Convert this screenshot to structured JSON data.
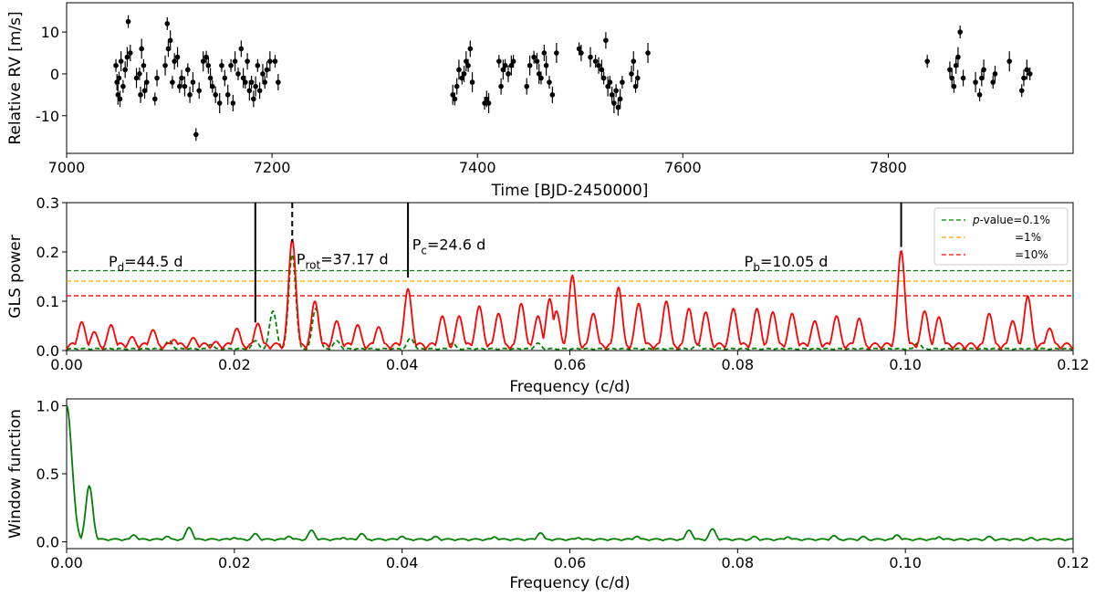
{
  "chart_data": [
    {
      "type": "scatter",
      "xlabel": "Time [BJD-2450000]",
      "ylabel": "Relative RV [m/s]",
      "xlim": [
        7000,
        7980
      ],
      "ylim": [
        -19,
        17
      ],
      "xticks": [
        7000,
        7200,
        7400,
        7600,
        7800
      ],
      "yticks": [
        -10,
        0,
        10
      ],
      "error_bars": true,
      "color": "#000000",
      "points": [
        [
          7048,
          2
        ],
        [
          7049,
          -2
        ],
        [
          7050,
          -5
        ],
        [
          7051,
          -1
        ],
        [
          7052,
          -6
        ],
        [
          7053,
          3
        ],
        [
          7055,
          -3
        ],
        [
          7057,
          1
        ],
        [
          7059,
          4
        ],
        [
          7060,
          12.5
        ],
        [
          7062,
          5
        ],
        [
          7068,
          -1
        ],
        [
          7071,
          0
        ],
        [
          7072,
          -5
        ],
        [
          7073,
          6
        ],
        [
          7075,
          2
        ],
        [
          7076,
          -4
        ],
        [
          7078,
          -2
        ],
        [
          7086,
          -6
        ],
        [
          7088,
          -1
        ],
        [
          7096,
          2
        ],
        [
          7098,
          12
        ],
        [
          7099,
          6
        ],
        [
          7101,
          8
        ],
        [
          7103,
          -2
        ],
        [
          7105,
          3
        ],
        [
          7108,
          4
        ],
        [
          7110,
          -3
        ],
        [
          7112,
          -1
        ],
        [
          7115,
          -3
        ],
        [
          7118,
          1
        ],
        [
          7120,
          -5
        ],
        [
          7123,
          -2
        ],
        [
          7126,
          -14.5
        ],
        [
          7129,
          -4
        ],
        [
          7133,
          3
        ],
        [
          7136,
          4
        ],
        [
          7138,
          2
        ],
        [
          7140,
          -1
        ],
        [
          7142,
          -3
        ],
        [
          7145,
          -5
        ],
        [
          7149,
          -7
        ],
        [
          7151,
          2
        ],
        [
          7154,
          -1
        ],
        [
          7157,
          -5
        ],
        [
          7160,
          2
        ],
        [
          7162,
          -7
        ],
        [
          7164,
          3
        ],
        [
          7167,
          0
        ],
        [
          7170,
          6
        ],
        [
          7172,
          -1
        ],
        [
          7174,
          -2
        ],
        [
          7176,
          3
        ],
        [
          7178,
          -4
        ],
        [
          7180,
          -2
        ],
        [
          7182,
          -6
        ],
        [
          7184,
          -3
        ],
        [
          7186,
          2
        ],
        [
          7188,
          -4
        ],
        [
          7191,
          0
        ],
        [
          7193,
          -2
        ],
        [
          7195,
          1
        ],
        [
          7198,
          3
        ],
        [
          7203,
          3
        ],
        [
          7206,
          -2
        ],
        [
          7376,
          -5
        ],
        [
          7378,
          -6
        ],
        [
          7380,
          -3
        ],
        [
          7382,
          1
        ],
        [
          7385,
          -1
        ],
        [
          7387,
          0
        ],
        [
          7389,
          3
        ],
        [
          7391,
          2
        ],
        [
          7393,
          6
        ],
        [
          7395,
          -2
        ],
        [
          7407,
          -7
        ],
        [
          7409,
          -6
        ],
        [
          7411,
          -7
        ],
        [
          7421,
          3
        ],
        [
          7423,
          -3
        ],
        [
          7425,
          1
        ],
        [
          7427,
          2
        ],
        [
          7430,
          0
        ],
        [
          7433,
          2
        ],
        [
          7435,
          3
        ],
        [
          7448,
          -3
        ],
        [
          7451,
          2
        ],
        [
          7455,
          4
        ],
        [
          7458,
          3
        ],
        [
          7460,
          0
        ],
        [
          7462,
          -1
        ],
        [
          7465,
          5
        ],
        [
          7467,
          2
        ],
        [
          7470,
          -2
        ],
        [
          7473,
          -5
        ],
        [
          7477,
          5
        ],
        [
          7499,
          6
        ],
        [
          7501,
          5
        ],
        [
          7510,
          4
        ],
        [
          7515,
          3
        ],
        [
          7518,
          2
        ],
        [
          7521,
          1
        ],
        [
          7523,
          -1
        ],
        [
          7525,
          8
        ],
        [
          7527,
          -3
        ],
        [
          7529,
          -2
        ],
        [
          7531,
          -5
        ],
        [
          7533,
          -7
        ],
        [
          7535,
          -4
        ],
        [
          7537,
          -8
        ],
        [
          7539,
          -6
        ],
        [
          7541,
          -2
        ],
        [
          7550,
          0
        ],
        [
          7552,
          3
        ],
        [
          7554,
          -3
        ],
        [
          7556,
          -1
        ],
        [
          7566,
          5
        ],
        [
          7838,
          3
        ],
        [
          7860,
          1
        ],
        [
          7862,
          -1
        ],
        [
          7864,
          -3
        ],
        [
          7866,
          2
        ],
        [
          7868,
          4
        ],
        [
          7870,
          10
        ],
        [
          7873,
          -1
        ],
        [
          7885,
          -2
        ],
        [
          7889,
          -5
        ],
        [
          7891,
          -1
        ],
        [
          7893,
          1
        ],
        [
          7902,
          -2
        ],
        [
          7904,
          0
        ],
        [
          7918,
          3
        ],
        [
          7930,
          -4
        ],
        [
          7932,
          -1
        ],
        [
          7935,
          1
        ],
        [
          7938,
          0
        ]
      ]
    },
    {
      "type": "line",
      "xlabel": "Frequency (c/d)",
      "ylabel": "GLS power",
      "xlim": [
        0,
        0.12
      ],
      "ylim": [
        0,
        0.3
      ],
      "xticks": [
        "0.00",
        "0.02",
        "0.04",
        "0.06",
        "0.08",
        "0.10",
        "0.12"
      ],
      "yticks": [
        "0.0",
        "0.1",
        "0.2",
        "0.3"
      ],
      "thresholds": [
        {
          "label_prefix": "p",
          "label": "-value=0.1%",
          "value": 0.162,
          "color": "#008000"
        },
        {
          "label_prefix": "",
          "label": "=1%",
          "value": 0.141,
          "color": "#FFA500"
        },
        {
          "label_prefix": "",
          "label": "=10%",
          "value": 0.111,
          "color": "#FF0000"
        }
      ],
      "annotations": [
        {
          "main": "P",
          "sub": "d",
          "rest": "=44.5 d",
          "freq": 0.0225,
          "line_top": 0.3,
          "line_bottom": 0.057,
          "style": "solid",
          "text_x": 0.005,
          "text_y": 0.17
        },
        {
          "main": "P",
          "sub": "rot",
          "rest": "=37.17 d",
          "freq": 0.0269,
          "line_top": 0.3,
          "line_bottom": 0.22,
          "style": "dashed",
          "text_x": 0.0274,
          "text_y": 0.175
        },
        {
          "main": "P",
          "sub": "c",
          "rest": "=24.6 d",
          "freq": 0.0407,
          "line_top": 0.3,
          "line_bottom": 0.148,
          "style": "solid",
          "text_x": 0.0412,
          "text_y": 0.205
        },
        {
          "main": "P",
          "sub": "b",
          "rest": "=10.05 d",
          "freq": 0.0995,
          "line_top": 0.3,
          "line_bottom": 0.21,
          "style": "solid",
          "text_x": 0.0808,
          "text_y": 0.17
        }
      ],
      "red_peaks": [
        [
          0.0018,
          0.058
        ],
        [
          0.0033,
          0.038
        ],
        [
          0.0053,
          0.052
        ],
        [
          0.0078,
          0.028
        ],
        [
          0.0103,
          0.042
        ],
        [
          0.0128,
          0.022
        ],
        [
          0.0151,
          0.026
        ],
        [
          0.0178,
          0.018
        ],
        [
          0.0203,
          0.045
        ],
        [
          0.0228,
          0.055
        ],
        [
          0.0269,
          0.225
        ],
        [
          0.0296,
          0.1
        ],
        [
          0.0322,
          0.06
        ],
        [
          0.0347,
          0.052
        ],
        [
          0.0372,
          0.048
        ],
        [
          0.0407,
          0.125
        ],
        [
          0.0448,
          0.07
        ],
        [
          0.0468,
          0.07
        ],
        [
          0.0492,
          0.09
        ],
        [
          0.0515,
          0.075
        ],
        [
          0.0542,
          0.095
        ],
        [
          0.0562,
          0.07
        ],
        [
          0.0576,
          0.105
        ],
        [
          0.0584,
          0.08
        ],
        [
          0.0603,
          0.152
        ],
        [
          0.0628,
          0.075
        ],
        [
          0.0658,
          0.128
        ],
        [
          0.0682,
          0.095
        ],
        [
          0.0715,
          0.1
        ],
        [
          0.0742,
          0.085
        ],
        [
          0.0762,
          0.078
        ],
        [
          0.0795,
          0.085
        ],
        [
          0.0823,
          0.085
        ],
        [
          0.0842,
          0.078
        ],
        [
          0.0865,
          0.075
        ],
        [
          0.0892,
          0.06
        ],
        [
          0.0918,
          0.07
        ],
        [
          0.0945,
          0.065
        ],
        [
          0.0995,
          0.202
        ],
        [
          0.1023,
          0.08
        ],
        [
          0.104,
          0.068
        ],
        [
          0.11,
          0.075
        ],
        [
          0.1128,
          0.06
        ],
        [
          0.1146,
          0.11
        ],
        [
          0.1172,
          0.045
        ]
      ],
      "green_peaks": [
        [
          0.0122,
          0.02
        ],
        [
          0.0172,
          0.012
        ],
        [
          0.0225,
          0.02
        ],
        [
          0.0246,
          0.08
        ],
        [
          0.0269,
          0.195
        ],
        [
          0.0297,
          0.085
        ],
        [
          0.0322,
          0.02
        ],
        [
          0.041,
          0.025
        ],
        [
          0.046,
          0.015
        ],
        [
          0.0562,
          0.015
        ],
        [
          0.0752,
          0.012
        ],
        [
          0.1015,
          0.015
        ]
      ]
    },
    {
      "type": "line",
      "xlabel": "Frequency (c/d)",
      "ylabel": "Window function",
      "xlim": [
        0,
        0.12
      ],
      "ylim": [
        -0.05,
        1.05
      ],
      "xticks": [
        "0.00",
        "0.02",
        "0.04",
        "0.06",
        "0.08",
        "0.10",
        "0.12"
      ],
      "yticks": [
        "0.0",
        "0.5",
        "1.0"
      ],
      "color": "#008000",
      "peaks": [
        [
          0.0,
          1.0
        ],
        [
          0.0027,
          0.41
        ],
        [
          0.008,
          0.05
        ],
        [
          0.012,
          0.04
        ],
        [
          0.0146,
          0.105
        ],
        [
          0.02,
          0.03
        ],
        [
          0.0225,
          0.06
        ],
        [
          0.0265,
          0.04
        ],
        [
          0.0292,
          0.085
        ],
        [
          0.033,
          0.03
        ],
        [
          0.0352,
          0.06
        ],
        [
          0.04,
          0.04
        ],
        [
          0.044,
          0.04
        ],
        [
          0.051,
          0.035
        ],
        [
          0.0565,
          0.065
        ],
        [
          0.061,
          0.03
        ],
        [
          0.068,
          0.04
        ],
        [
          0.0742,
          0.085
        ],
        [
          0.077,
          0.095
        ],
        [
          0.082,
          0.04
        ],
        [
          0.086,
          0.035
        ],
        [
          0.0915,
          0.045
        ],
        [
          0.095,
          0.04
        ],
        [
          0.099,
          0.05
        ],
        [
          0.104,
          0.035
        ],
        [
          0.11,
          0.04
        ],
        [
          0.115,
          0.03
        ]
      ]
    }
  ]
}
